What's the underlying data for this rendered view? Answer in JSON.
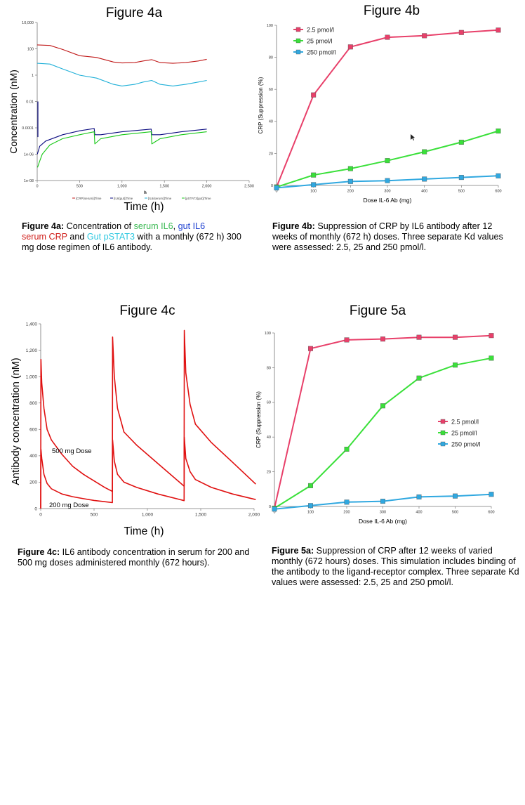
{
  "colors": {
    "red": "#c01818",
    "cyan": "#20b0d8",
    "navy": "#0a0a80",
    "green": "#18c818",
    "pink": "#e8406a",
    "lime": "#3ae03a",
    "sky": "#30a8e0",
    "antibody": "#e01010",
    "cap_green": "#3cba54",
    "cap_blue": "#1c3fd0",
    "cap_red": "#d0201c",
    "cap_cyan": "#2ec8e0"
  },
  "fig4a": {
    "title": "Figure 4a",
    "caption": {
      "label": "Figure 4a:",
      "t1": " Concentration of ",
      "c1": "serum IL6",
      "t2": ", ",
      "c2": "gut IL6",
      "c3": "serum CRP",
      "t3": " and ",
      "c4": "Gut pSTAT3",
      "t4": " with a monthly (672 h) 300 mg dose regimen of IL6 antibody."
    }
  },
  "fig4b": {
    "title": "Figure 4b",
    "caption": {
      "label": "Figure 4b:",
      "text": " Suppression of CRP by IL6 antibody after 12 weeks of monthly (672 h) doses. Three separate Kd values were assessed: 2.5, 25 and 250 pmol/l."
    }
  },
  "fig4c": {
    "title": "Figure 4c",
    "caption": {
      "label": "Figure 4c:",
      "text": " IL6 antibody concentration in serum for 200 and 500 mg doses administered monthly (672 hours)."
    }
  },
  "fig5a": {
    "title": "Figure 5a",
    "caption": {
      "label": "Figure 5a:",
      "text": " Suppression of CRP after 12 weeks of varied monthly (672 hours) doses. This simulation includes binding of the antibody to the ligand-receptor complex. Three separate Kd values were assessed: 2.5, 25 and 250 pmol/l."
    }
  },
  "chart_data": [
    {
      "id": "fig4a",
      "type": "line",
      "title": "Figure 4a",
      "xlabel": "Time (h)",
      "ylabel": "Concentration (nM)",
      "xlim": [
        0,
        2500
      ],
      "ylim": [
        1e-08,
        10000
      ],
      "log_y": true,
      "x_ticks": [
        "0",
        "500",
        "1,000",
        "1,500",
        "2,000",
        "2,500"
      ],
      "y_ticks": [
        "1e-08",
        "1e-06",
        "0.0001",
        "0.01",
        "1",
        "100",
        "10,000"
      ],
      "axis_unit_label": "h",
      "legend": [
        "[CRP(serum)]Time",
        "[IL6(gut)]Time",
        "[IL6(serum)]Time",
        "[pSTAT3(gut)]Time"
      ],
      "series": [
        {
          "name": "[CRP(serum)]Time",
          "color": "#c01818",
          "x": [
            0,
            150,
            300,
            500,
            700,
            900,
            1000,
            1150,
            1250,
            1350,
            1450,
            1600,
            1750,
            1900,
            2000
          ],
          "y": [
            200,
            180,
            90,
            30,
            22,
            10,
            8.5,
            9,
            12,
            15,
            9,
            8,
            9,
            12,
            16
          ]
        },
        {
          "name": "[IL6(serum)]Time",
          "color": "#20b0d8",
          "x": [
            0,
            150,
            300,
            500,
            700,
            900,
            1000,
            1150,
            1250,
            1350,
            1450,
            1600,
            1750,
            1900,
            2000
          ],
          "y": [
            8,
            7,
            3,
            1,
            0.6,
            0.2,
            0.15,
            0.2,
            0.3,
            0.4,
            0.2,
            0.15,
            0.2,
            0.3,
            0.4
          ]
        },
        {
          "name": "[IL6(gut)]Time",
          "color": "#0a0a80",
          "x": [
            2,
            30,
            100,
            300,
            500,
            672,
            680,
            750,
            1000,
            1344,
            1352,
            1450,
            1700,
            2000
          ],
          "y": [
            1e-06,
            4e-06,
            1e-05,
            3e-05,
            6e-05,
            9e-05,
            3e-05,
            3e-05,
            5e-05,
            8e-05,
            3e-05,
            3e-05,
            5e-05,
            8e-05
          ]
        },
        {
          "name": "[pSTAT3(gut)]Time",
          "color": "#18c818",
          "x": [
            4,
            20,
            60,
            150,
            300,
            500,
            672,
            680,
            750,
            1000,
            1344,
            1352,
            1450,
            1700,
            2000
          ],
          "y": [
            1e-07,
            2e-07,
            1e-06,
            5e-06,
            1.5e-05,
            3e-05,
            5e-05,
            6e-06,
            1.5e-05,
            3e-05,
            5e-05,
            6e-06,
            1.5e-05,
            3e-05,
            5e-05
          ]
        }
      ]
    },
    {
      "id": "fig4b",
      "type": "line",
      "title": "Figure 4b",
      "xlabel": "Dose IL-6 Ab (mg)",
      "ylabel": "CRP (Suppression (%)",
      "xlim": [
        0,
        600
      ],
      "ylim": [
        0,
        100
      ],
      "x_ticks": [
        "0",
        "100",
        "200",
        "300",
        "400",
        "500",
        "600"
      ],
      "y_ticks": [
        "0",
        "20",
        "40",
        "60",
        "80",
        "100"
      ],
      "legend_position": "top-left",
      "categories": [
        0,
        100,
        200,
        300,
        400,
        500,
        600
      ],
      "series": [
        {
          "name": "2.5 pmol/l",
          "color": "#e8406a",
          "values": [
            -1,
            56.5,
            86.5,
            92.5,
            93.5,
            95.5,
            97
          ]
        },
        {
          "name": "25 pmol/l",
          "color": "#3ae03a",
          "values": [
            -1,
            6.5,
            10.5,
            15.5,
            21,
            27,
            34
          ]
        },
        {
          "name": "250 pmol/l",
          "color": "#30a8e0",
          "values": [
            -1.5,
            0.5,
            2.5,
            3,
            4,
            5,
            6
          ]
        }
      ]
    },
    {
      "id": "fig4c",
      "type": "line",
      "title": "Figure 4c",
      "xlabel": "Time (h)",
      "ylabel": "Antibody concentration (nM)",
      "xlim": [
        0,
        2000
      ],
      "ylim": [
        0,
        1400
      ],
      "x_ticks": [
        "0",
        "500",
        "1,000",
        "1,500",
        "2,000"
      ],
      "y_ticks": [
        "0",
        "200",
        "400",
        "600",
        "800",
        "1,000",
        "1,200",
        "1,400"
      ],
      "annotations": [
        "500 mg Dose",
        "200 mg Dose"
      ],
      "series": [
        {
          "name": "500 mg Dose",
          "color": "#e01010",
          "x": [
            0,
            2,
            10,
            30,
            60,
            100,
            200,
            300,
            400,
            500,
            600,
            672,
            674,
            690,
            720,
            780,
            900,
            1100,
            1344,
            1346,
            1360,
            1400,
            1450,
            1600,
            1800,
            2016
          ],
          "y": [
            0,
            1130,
            950,
            760,
            600,
            520,
            410,
            320,
            260,
            210,
            160,
            130,
            1300,
            1000,
            760,
            580,
            480,
            340,
            170,
            1350,
            1030,
            790,
            640,
            500,
            350,
            185
          ]
        },
        {
          "name": "200 mg Dose",
          "color": "#e01010",
          "x": [
            0,
            2,
            10,
            30,
            60,
            100,
            200,
            300,
            400,
            500,
            600,
            672,
            674,
            690,
            720,
            780,
            900,
            1100,
            1344,
            1346,
            1360,
            1400,
            1450,
            1600,
            1800,
            2016
          ],
          "y": [
            0,
            450,
            380,
            260,
            190,
            150,
            110,
            90,
            75,
            62,
            52,
            45,
            520,
            360,
            260,
            200,
            160,
            110,
            60,
            540,
            380,
            280,
            220,
            160,
            110,
            68
          ]
        }
      ]
    },
    {
      "id": "fig5a",
      "type": "line",
      "title": "Figure 5a",
      "xlabel": "Dose IL-6 Ab (mg)",
      "ylabel": "CRP (Suppression (%)",
      "xlim": [
        0,
        600
      ],
      "ylim": [
        0,
        100
      ],
      "x_ticks": [
        "0",
        "100",
        "200",
        "300",
        "400",
        "500",
        "600"
      ],
      "y_ticks": [
        "0",
        "20",
        "40",
        "60",
        "80",
        "100"
      ],
      "legend_position": "right",
      "categories": [
        0,
        100,
        200,
        300,
        400,
        500,
        600
      ],
      "series": [
        {
          "name": "2.5 pmol/l",
          "color": "#e8406a",
          "values": [
            -1,
            91,
            96,
            96.5,
            97.5,
            97.5,
            98.5
          ]
        },
        {
          "name": "25 pmol/l",
          "color": "#3ae03a",
          "values": [
            -1,
            12,
            33,
            58,
            74,
            81.5,
            85.5
          ]
        },
        {
          "name": "250 pmol/l",
          "color": "#30a8e0",
          "values": [
            -1.5,
            0.5,
            2.5,
            3,
            5.5,
            6,
            7
          ]
        }
      ]
    }
  ]
}
